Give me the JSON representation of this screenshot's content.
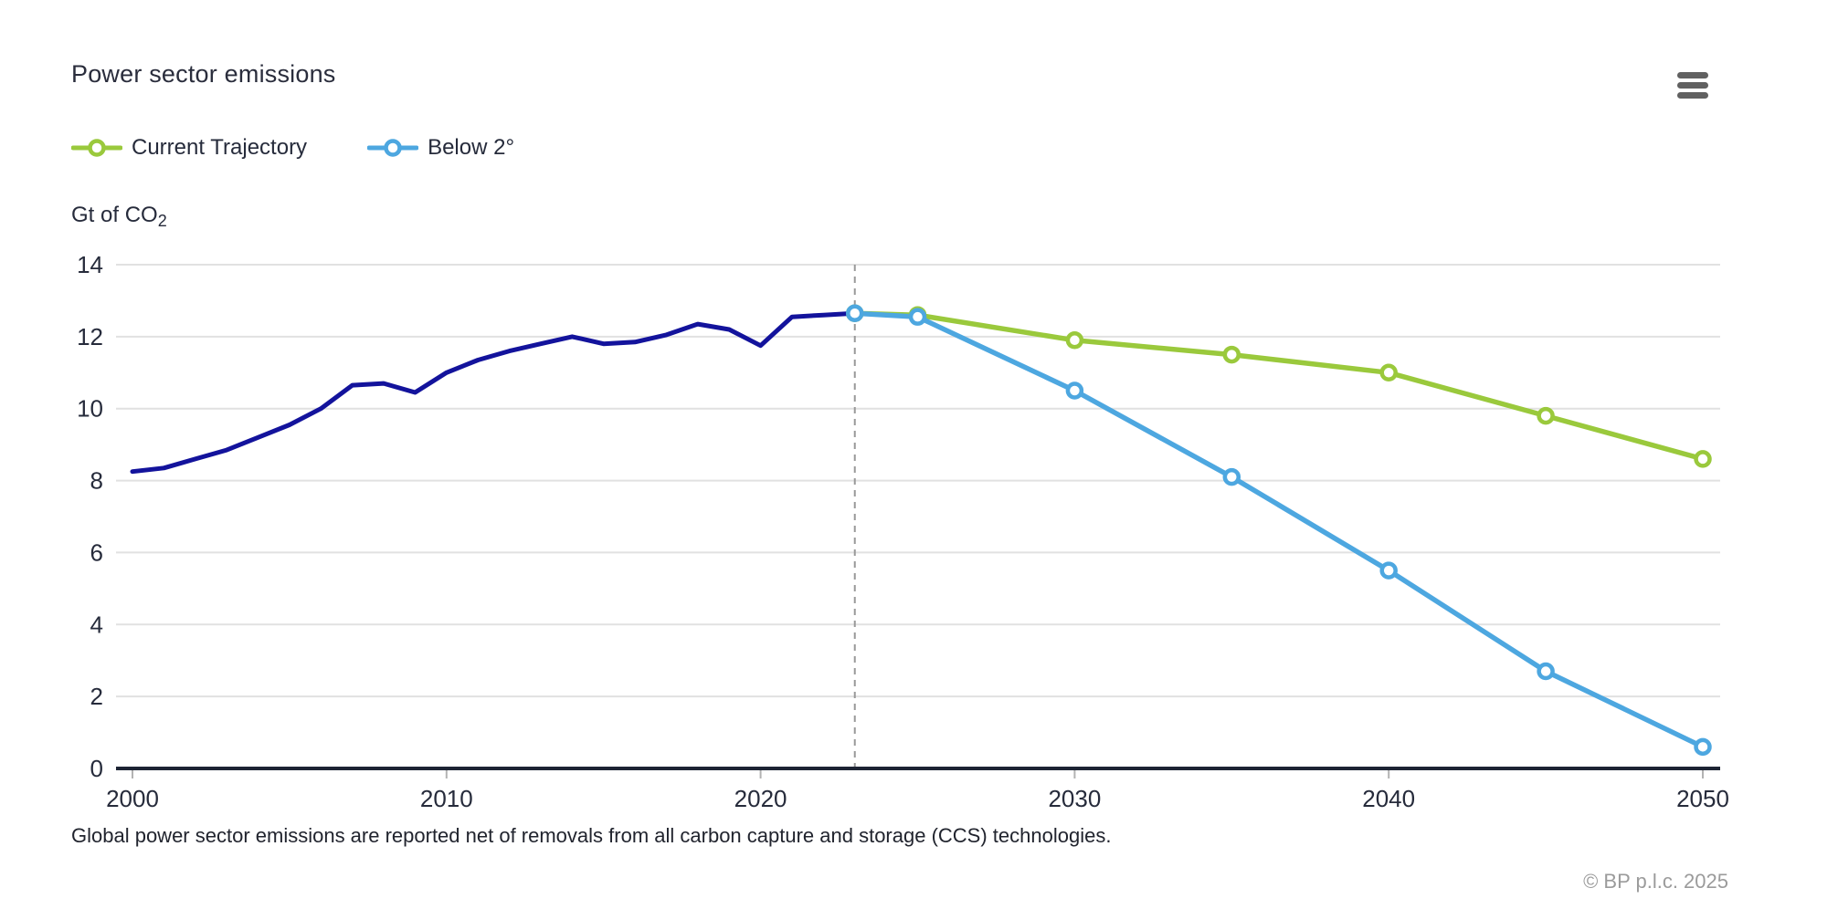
{
  "header": {
    "title": "Power sector emissions"
  },
  "menu": {
    "icon": "hamburger-menu-icon"
  },
  "legend": {
    "items": [
      {
        "label": "Current Trajectory",
        "color": "#9AC93C"
      },
      {
        "label": "Below 2°",
        "color": "#4DA7E0"
      }
    ]
  },
  "y_axis_unit": {
    "main": "Gt of CO",
    "subscript": "2"
  },
  "footnote": "Global power sector emissions are reported net of removals from all carbon capture and storage (CCS) technologies.",
  "copyright": "© BP p.l.c. 2025",
  "colors": {
    "historical": "#13139C",
    "current_trajectory": "#9AC93C",
    "below_2": "#4DA7E0",
    "grid": "#e1e1e1",
    "axis": "#1d2434",
    "tick": "#b3b3b3",
    "dashed_line": "#999999",
    "text_dark": "#262b3b",
    "text_muted": "#9b9b9b"
  },
  "chart_data": {
    "type": "line",
    "title": "Power sector emissions",
    "xlabel": "",
    "ylabel": "Gt of CO2",
    "xlim": [
      2000,
      2050
    ],
    "ylim": [
      0,
      14
    ],
    "x_ticks": [
      2000,
      2010,
      2020,
      2030,
      2040,
      2050
    ],
    "y_ticks": [
      0,
      2,
      4,
      6,
      8,
      10,
      12,
      14
    ],
    "grid": "horizontal",
    "legend_position": "top-left",
    "forecast_divider_x": 2023,
    "series": [
      {
        "name": "Historical",
        "color": "#13139C",
        "show_markers": false,
        "x": [
          2000,
          2001,
          2002,
          2003,
          2004,
          2005,
          2006,
          2007,
          2008,
          2009,
          2010,
          2011,
          2012,
          2013,
          2014,
          2015,
          2016,
          2017,
          2018,
          2019,
          2020,
          2021,
          2022,
          2023
        ],
        "values": [
          8.25,
          8.35,
          8.6,
          8.85,
          9.2,
          9.55,
          10.0,
          10.65,
          10.7,
          10.45,
          11.0,
          11.35,
          11.6,
          11.8,
          12.0,
          11.8,
          11.85,
          12.05,
          12.35,
          12.2,
          11.75,
          12.55,
          12.6,
          12.65
        ]
      },
      {
        "name": "Current Trajectory",
        "color": "#9AC93C",
        "show_markers": true,
        "x": [
          2023,
          2025,
          2030,
          2035,
          2040,
          2045,
          2050
        ],
        "values": [
          12.65,
          12.6,
          11.9,
          11.5,
          11.0,
          9.8,
          8.6
        ]
      },
      {
        "name": "Below 2°",
        "color": "#4DA7E0",
        "show_markers": true,
        "x": [
          2023,
          2025,
          2030,
          2035,
          2040,
          2045,
          2050
        ],
        "values": [
          12.65,
          12.55,
          10.5,
          8.1,
          5.5,
          2.7,
          0.6
        ]
      }
    ]
  }
}
